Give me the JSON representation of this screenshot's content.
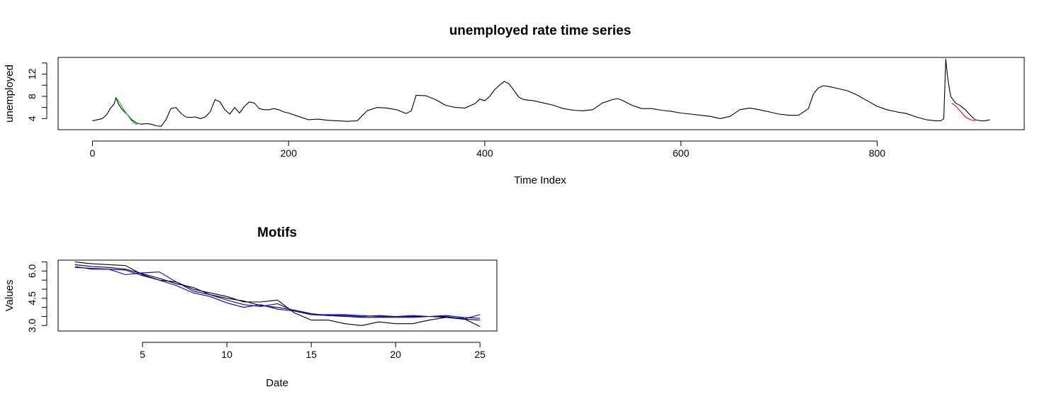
{
  "chart_data": [
    {
      "type": "line",
      "title": "unemployed rate time series",
      "xlabel": "Time Index",
      "ylabel": "unemployed",
      "xlim": [
        -35,
        950
      ],
      "ylim": [
        2,
        15
      ],
      "xticks": [
        0,
        200,
        400,
        600,
        800
      ],
      "yticks": [
        4,
        8,
        12
      ],
      "yticks_minor": [
        4,
        6,
        8,
        10,
        12,
        14
      ],
      "grid": false,
      "series": [
        {
          "color": "#000000",
          "x": [
            0,
            5,
            10,
            15,
            18,
            22,
            24,
            26,
            30,
            35,
            40,
            45,
            50,
            55,
            60,
            65,
            70,
            75,
            80,
            85,
            90,
            95,
            100,
            105,
            110,
            115,
            120,
            125,
            130,
            135,
            140,
            145,
            150,
            155,
            160,
            165,
            170,
            175,
            180,
            185,
            190,
            195,
            200,
            210,
            220,
            230,
            240,
            250,
            260,
            270,
            280,
            290,
            300,
            310,
            320,
            325,
            330,
            340,
            350,
            360,
            370,
            380,
            390,
            395,
            400,
            405,
            410,
            415,
            420,
            425,
            430,
            435,
            440,
            450,
            460,
            470,
            480,
            490,
            500,
            510,
            520,
            530,
            535,
            540,
            550,
            560,
            570,
            580,
            590,
            600,
            610,
            620,
            630,
            640,
            650,
            660,
            670,
            680,
            690,
            700,
            710,
            720,
            730,
            735,
            740,
            745,
            750,
            760,
            770,
            780,
            790,
            800,
            810,
            820,
            830,
            840,
            850,
            860,
            865,
            868,
            870,
            872,
            875,
            880,
            885,
            890,
            895,
            900,
            905,
            910,
            915
          ],
          "y": [
            3.6,
            3.8,
            4.0,
            4.8,
            5.8,
            6.6,
            7.8,
            6.8,
            5.7,
            4.8,
            3.8,
            3.2,
            3.0,
            3.1,
            3.0,
            2.7,
            2.6,
            3.8,
            5.8,
            6.0,
            5.0,
            4.3,
            4.2,
            4.3,
            4.0,
            4.3,
            5.2,
            7.4,
            7.0,
            5.6,
            4.8,
            6.0,
            5.0,
            6.2,
            7.0,
            6.8,
            5.8,
            5.6,
            5.6,
            5.8,
            5.6,
            5.2,
            5.0,
            4.4,
            3.8,
            3.9,
            3.7,
            3.6,
            3.5,
            3.6,
            5.4,
            6.0,
            5.9,
            5.6,
            4.9,
            5.4,
            8.2,
            8.1,
            7.4,
            6.4,
            6.0,
            5.9,
            6.7,
            7.5,
            7.2,
            8.0,
            9.2,
            10.0,
            10.7,
            10.2,
            9.0,
            7.8,
            7.4,
            7.2,
            6.8,
            6.4,
            5.8,
            5.5,
            5.4,
            5.6,
            6.8,
            7.4,
            7.6,
            7.3,
            6.4,
            5.8,
            5.8,
            5.5,
            5.3,
            5.0,
            4.8,
            4.6,
            4.4,
            4.0,
            4.4,
            5.6,
            5.9,
            5.6,
            5.2,
            4.8,
            4.6,
            4.6,
            5.8,
            8.4,
            9.5,
            9.9,
            9.8,
            9.4,
            9.0,
            8.2,
            7.2,
            6.2,
            5.6,
            5.2,
            4.9,
            4.3,
            3.8,
            3.6,
            3.6,
            4.0,
            14.7,
            11.2,
            8.0,
            6.8,
            6.3,
            5.6,
            4.6,
            3.8,
            3.6,
            3.6,
            3.8
          ]
        },
        {
          "color": "#00cc00",
          "x": [
            24,
            28,
            32,
            36,
            40,
            44,
            48
          ],
          "y": [
            7.8,
            6.8,
            5.6,
            4.6,
            3.6,
            3.0,
            3.1
          ]
        },
        {
          "color": "#ee0000",
          "x": [
            876,
            880,
            885,
            890,
            895,
            900
          ],
          "y": [
            6.8,
            6.3,
            5.3,
            4.3,
            3.8,
            3.6
          ]
        }
      ]
    },
    {
      "type": "line",
      "title": "Motifs",
      "xlabel": "Date",
      "ylabel": "Values",
      "xlim": [
        0,
        26
      ],
      "ylim": [
        2.7,
        6.6
      ],
      "xticks": [
        5,
        10,
        15,
        20,
        25
      ],
      "yticks": [
        3.0,
        4.5,
        6.0
      ],
      "yticks_labels": [
        "3.0",
        "4.5",
        "6.0"
      ],
      "yticks_minor": [
        3.0,
        3.5,
        4.0,
        4.5,
        5.0,
        5.5,
        6.0,
        6.5
      ],
      "grid": false,
      "series": [
        {
          "color": "#000000",
          "x": [
            1,
            2,
            3,
            4,
            5,
            6,
            7,
            8,
            9,
            10,
            11,
            12,
            13,
            14,
            15,
            16,
            17,
            18,
            19,
            20,
            21,
            22,
            23,
            24,
            25
          ],
          "y": [
            6.5,
            6.4,
            6.35,
            6.3,
            5.8,
            5.5,
            5.4,
            5.0,
            4.8,
            4.6,
            4.3,
            4.3,
            4.4,
            3.7,
            3.3,
            3.3,
            3.1,
            3.0,
            3.2,
            3.1,
            3.1,
            3.3,
            3.45,
            3.4,
            2.95
          ]
        },
        {
          "color": "#000000",
          "x": [
            1,
            2,
            3,
            4,
            5,
            6,
            7,
            8,
            9,
            10,
            11,
            12,
            13,
            14,
            15,
            16,
            17,
            18,
            19,
            20,
            21,
            22,
            23,
            24,
            25
          ],
          "y": [
            6.35,
            6.25,
            6.2,
            6.1,
            5.85,
            5.6,
            5.3,
            5.1,
            4.7,
            4.5,
            4.35,
            4.1,
            4.0,
            3.85,
            3.65,
            3.55,
            3.5,
            3.45,
            3.45,
            3.45,
            3.45,
            3.5,
            3.45,
            3.35,
            3.3
          ]
        },
        {
          "color": "#0000cc",
          "x": [
            1,
            2,
            3,
            4,
            5,
            6,
            7,
            8,
            9,
            10,
            11,
            12,
            13,
            14,
            15,
            16,
            17,
            18,
            19,
            20,
            21,
            22,
            23,
            24,
            25
          ],
          "y": [
            6.25,
            6.1,
            6.1,
            5.8,
            5.9,
            5.95,
            5.4,
            4.9,
            4.7,
            4.4,
            4.15,
            4.05,
            4.2,
            3.8,
            3.6,
            3.6,
            3.6,
            3.55,
            3.5,
            3.5,
            3.55,
            3.5,
            3.5,
            3.35,
            3.6
          ]
        },
        {
          "color": "#0000cc",
          "x": [
            1,
            2,
            3,
            4,
            5,
            6,
            7,
            8,
            9,
            10,
            11,
            12,
            13,
            14,
            15,
            16,
            17,
            18,
            19,
            20,
            21,
            22,
            23,
            24,
            25
          ],
          "y": [
            6.2,
            6.15,
            6.1,
            6.05,
            5.75,
            5.5,
            5.2,
            4.8,
            4.6,
            4.25,
            4.0,
            4.15,
            3.9,
            3.8,
            3.6,
            3.55,
            3.55,
            3.5,
            3.55,
            3.5,
            3.5,
            3.5,
            3.55,
            3.45,
            3.4
          ]
        }
      ]
    }
  ]
}
